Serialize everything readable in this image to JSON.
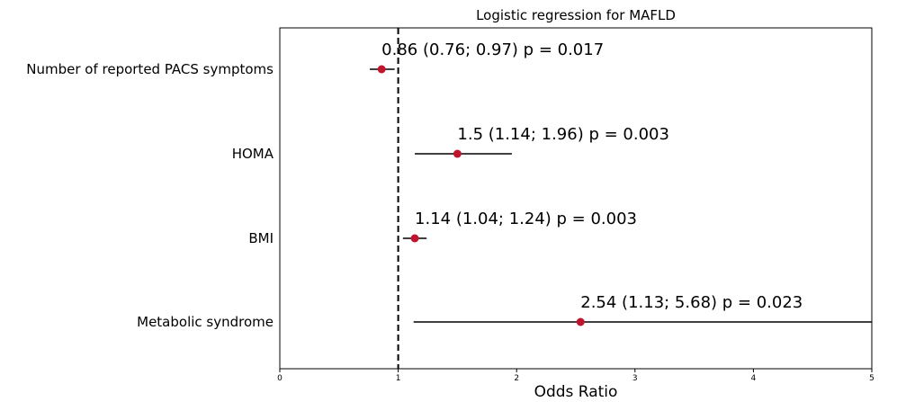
{
  "chart_data": {
    "type": "forest",
    "title": "Logistic regression for MAFLD",
    "xlabel": "Odds Ratio",
    "ylabel": "",
    "xlim": [
      0,
      5
    ],
    "xticks": [
      "0",
      "1",
      "2",
      "3",
      "4",
      "5"
    ],
    "reference_line": 1,
    "grid": false,
    "point_color": "#c0152f",
    "rows": [
      {
        "name": "Number of reported PACS symptoms",
        "or": 0.86,
        "lower": 0.76,
        "upper": 0.97,
        "label": "0.86 (0.76; 0.97) p = 0.017"
      },
      {
        "name": "HOMA",
        "or": 1.5,
        "lower": 1.14,
        "upper": 1.96,
        "label": "1.5 (1.14; 1.96) p = 0.003"
      },
      {
        "name": "BMI",
        "or": 1.14,
        "lower": 1.04,
        "upper": 1.24,
        "label": "1.14 (1.04; 1.24) p = 0.003"
      },
      {
        "name": "Metabolic syndrome",
        "or": 2.54,
        "lower": 1.13,
        "upper": 5.68,
        "label": "2.54 (1.13; 5.68) p = 0.023"
      }
    ]
  }
}
